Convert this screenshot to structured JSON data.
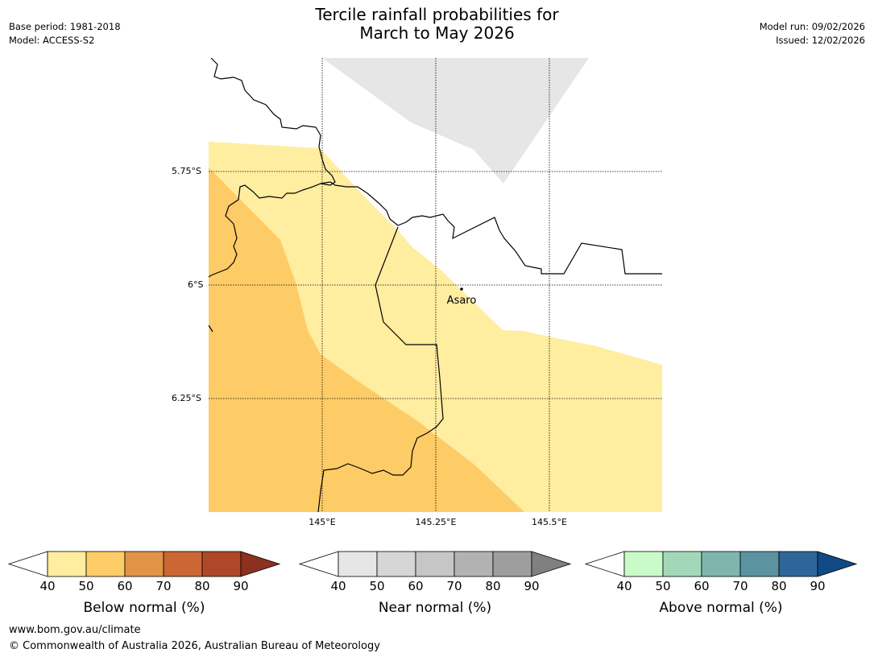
{
  "header": {
    "base_period": "Base period: 1981-2018",
    "model": "Model: ACCESS-S2",
    "title_line1": "Tercile rainfall probabilities for",
    "title_line2": "March to May 2026",
    "model_run": "Model run: 09/02/2026",
    "issued": "Issued: 12/02/2026"
  },
  "map": {
    "lat_labels": [
      "5.75°S",
      "6°S",
      "6.25°S"
    ],
    "lon_labels": [
      "145°E",
      "145.25°E",
      "145.5°E"
    ],
    "place_name": "Asaro",
    "colors": {
      "below_40_50": "#ffeda0",
      "below_50_60": "#fecc67",
      "near_40_50": "#e6e6e6"
    }
  },
  "colorbars": [
    {
      "title": "Below normal (%)",
      "ticks": [
        "40",
        "50",
        "60",
        "70",
        "80",
        "90"
      ],
      "colors": [
        "#ffeda0",
        "#fecc67",
        "#e29446",
        "#cc6633",
        "#ae4828",
        "#8c3020"
      ]
    },
    {
      "title": "Near normal (%)",
      "ticks": [
        "40",
        "50",
        "60",
        "70",
        "80",
        "90"
      ],
      "colors": [
        "#e6e6e6",
        "#d6d6d6",
        "#c6c6c6",
        "#b2b2b2",
        "#9e9e9e",
        "#808080"
      ]
    },
    {
      "title": "Above normal (%)",
      "ticks": [
        "40",
        "50",
        "60",
        "70",
        "80",
        "90"
      ],
      "colors": [
        "#c8fbc8",
        "#a2d8b8",
        "#7fb5ad",
        "#5b93a0",
        "#2f6699",
        "#104a84"
      ]
    }
  ],
  "footer": {
    "url": "www.bom.gov.au/climate",
    "copyright": "© Commonwealth of Australia 2026, Australian Bureau of Meteorology"
  }
}
